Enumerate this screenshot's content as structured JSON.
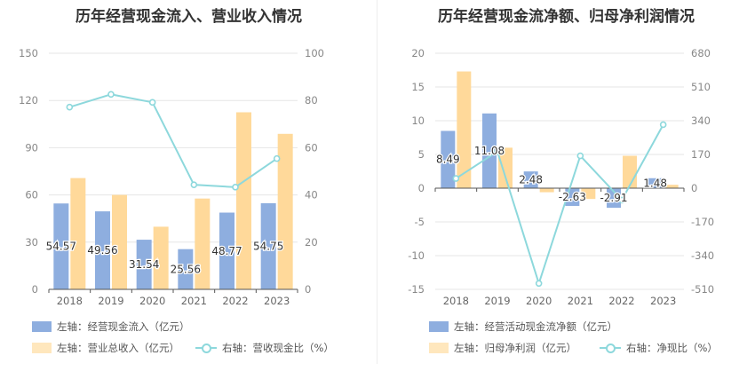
{
  "colors": {
    "bar_blue": "#8eaedf",
    "bar_orange": "#ffd99a",
    "line_teal": "#8dd8dc"
  },
  "left": {
    "title": "历年经营现金流入、营业收入情况",
    "legend": {
      "bar1": "左轴：经营现金流入（亿元）",
      "bar2": "左轴：营业总收入（亿元）",
      "line": "右轴：营收现金比（%）"
    }
  },
  "right": {
    "title": "历年经营现金流净额、归母净利润情况",
    "legend": {
      "bar1": "左轴：经营活动现金流净额（亿元）",
      "bar2": "左轴：归母净利润（亿元）",
      "line": "右轴：净现比（%）"
    }
  },
  "chart_data": [
    {
      "type": "bar",
      "title": "历年经营现金流入、营业收入情况",
      "categories": [
        "2018",
        "2019",
        "2020",
        "2021",
        "2022",
        "2023"
      ],
      "ylim_left": [
        0,
        150
      ],
      "yticks_left": [
        0,
        30,
        60,
        90,
        120,
        150
      ],
      "ylim_right": [
        0,
        100
      ],
      "yticks_right": [
        0,
        20,
        40,
        60,
        80,
        100
      ],
      "series": [
        {
          "name": "左轴：经营现金流入（亿元）",
          "axis": "left",
          "kind": "bar",
          "values": [
            54.57,
            49.56,
            31.54,
            25.56,
            48.77,
            54.75
          ],
          "labels": [
            "54.57",
            "49.56",
            "31.54",
            "25.56",
            "48.77",
            "54.75"
          ]
        },
        {
          "name": "左轴：营业总收入（亿元）",
          "axis": "left",
          "kind": "bar",
          "values": [
            70.7,
            60.0,
            39.8,
            57.7,
            112.5,
            98.8
          ]
        },
        {
          "name": "右轴：营收现金比（%）",
          "axis": "right",
          "kind": "line",
          "values": [
            77.2,
            82.6,
            79.2,
            44.3,
            43.3,
            55.4
          ]
        }
      ],
      "grid": true
    },
    {
      "type": "bar",
      "title": "历年经营现金流净额、归母净利润情况",
      "categories": [
        "2018",
        "2019",
        "2020",
        "2021",
        "2022",
        "2023"
      ],
      "ylim_left": [
        -15,
        20
      ],
      "yticks_left": [
        -15,
        -10,
        -5,
        0,
        5,
        10,
        15,
        20
      ],
      "ylim_right": [
        -510,
        680
      ],
      "yticks_right": [
        -510,
        -340,
        -170,
        0,
        170,
        340,
        510,
        680
      ],
      "series": [
        {
          "name": "左轴：经营活动现金流净额（亿元）",
          "axis": "left",
          "kind": "bar",
          "values": [
            8.49,
            11.08,
            2.48,
            -2.63,
            -2.91,
            1.48
          ],
          "labels": [
            "8.49",
            "11.08",
            "2.48",
            "-2.63",
            "-2.91",
            "1.48"
          ]
        },
        {
          "name": "左轴：归母净利润（亿元）",
          "axis": "left",
          "kind": "bar",
          "values": [
            17.3,
            6.0,
            -0.6,
            -1.6,
            4.8,
            0.5
          ]
        },
        {
          "name": "右轴：净现比（%）",
          "axis": "right",
          "kind": "line",
          "values": [
            49,
            185,
            -480,
            163,
            -60,
            320
          ]
        }
      ],
      "grid": true
    }
  ]
}
